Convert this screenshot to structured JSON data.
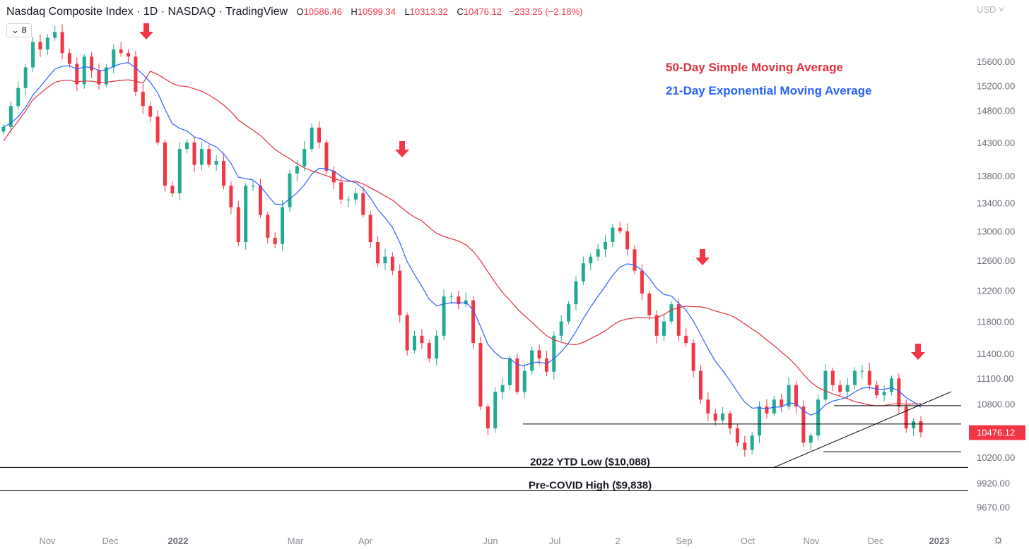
{
  "header": {
    "title": "Nasdaq Composite Index · 1D · NASDAQ · TradingView",
    "o_label": "O",
    "o": "10586.46",
    "h_label": "H",
    "h": "10599.34",
    "l_label": "L",
    "l": "10313.32",
    "c_label": "C",
    "c": "10476.12",
    "change": "−233.25 (−2.18%)",
    "interval_toggle": "8"
  },
  "currency": "USD",
  "colors": {
    "up": "#22ab94",
    "down": "#f23645",
    "sma": "#e0323e",
    "ema": "#2962ff",
    "text": "#131722",
    "axis": "#b2b5be"
  },
  "chart_data": {
    "type": "candlestick",
    "title": "Nasdaq Composite Index",
    "yscale": "log",
    "ylim": [
      9500,
      16300
    ],
    "y_ticks": [
      "15600.00",
      "15200.00",
      "14800.00",
      "14300.00",
      "13800.00",
      "13400.00",
      "13000.00",
      "12600.00",
      "12200.00",
      "11800.00",
      "11400.00",
      "11100.00",
      "10800.00",
      "10200.00",
      "9920.00",
      "9670.00"
    ],
    "x_ticks": [
      "Nov",
      "Dec",
      "2022",
      "Mar",
      "Apr",
      "Jun",
      "Jul",
      "2",
      "Sep",
      "Oct",
      "Nov",
      "Dec",
      "2023"
    ],
    "last_price": "10476.12",
    "closes": [
      14540,
      14870,
      15160,
      15500,
      15930,
      15800,
      16000,
      16100,
      15740,
      15560,
      15220,
      15680,
      15450,
      15220,
      15500,
      15800,
      15740,
      15680,
      15100,
      14870,
      14700,
      14300,
      13650,
      13540,
      14200,
      14300,
      13960,
      14200,
      13960,
      14020,
      13650,
      13340,
      12850,
      13650,
      13650,
      13230,
      12910,
      12820,
      13340,
      13830,
      13940,
      14200,
      14530,
      14300,
      13870,
      13700,
      13450,
      13450,
      13540,
      13230,
      12850,
      12560,
      12650,
      12460,
      11880,
      11440,
      11620,
      11530,
      11340,
      11620,
      12120,
      12120,
      12020,
      12070,
      11530,
      10770,
      10520,
      10940,
      11020,
      11340,
      10940,
      11190,
      11440,
      11340,
      11180,
      11620,
      11800,
      12020,
      12320,
      12560,
      12650,
      12750,
      12850,
      13050,
      13000,
      12750,
      12460,
      12160,
      11880,
      11620,
      11800,
      12020,
      11620,
      11530,
      11190,
      10850,
      10690,
      10610,
      10690,
      10520,
      10360,
      10280,
      10440,
      10770,
      10690,
      10850,
      10770,
      11020,
      10770,
      10360,
      10440,
      10850,
      11190,
      11020,
      10940,
      11020,
      11190,
      11190,
      11020,
      10900,
      10940,
      11100,
      10770,
      10520,
      10600,
      10476
    ],
    "series": [
      {
        "name": "50-Day Simple Moving Average",
        "color": "#e0323e"
      },
      {
        "name": "21-Day Exponential Moving Average",
        "color": "#2962ff"
      }
    ],
    "levels": [
      {
        "label": "2022 YTD Low ($10,088)",
        "price": 10088
      },
      {
        "label": "Pre-COVID High ($9,838)",
        "price": 9838
      },
      {
        "label": "",
        "price": 10569
      },
      {
        "label": "",
        "price": 10780
      },
      {
        "label": "",
        "price": 10260
      }
    ],
    "trendline": [
      10088,
      10943
    ],
    "annotations": [
      "sell-arrow",
      "sell-arrow",
      "sell-arrow",
      "sell-arrow"
    ]
  }
}
